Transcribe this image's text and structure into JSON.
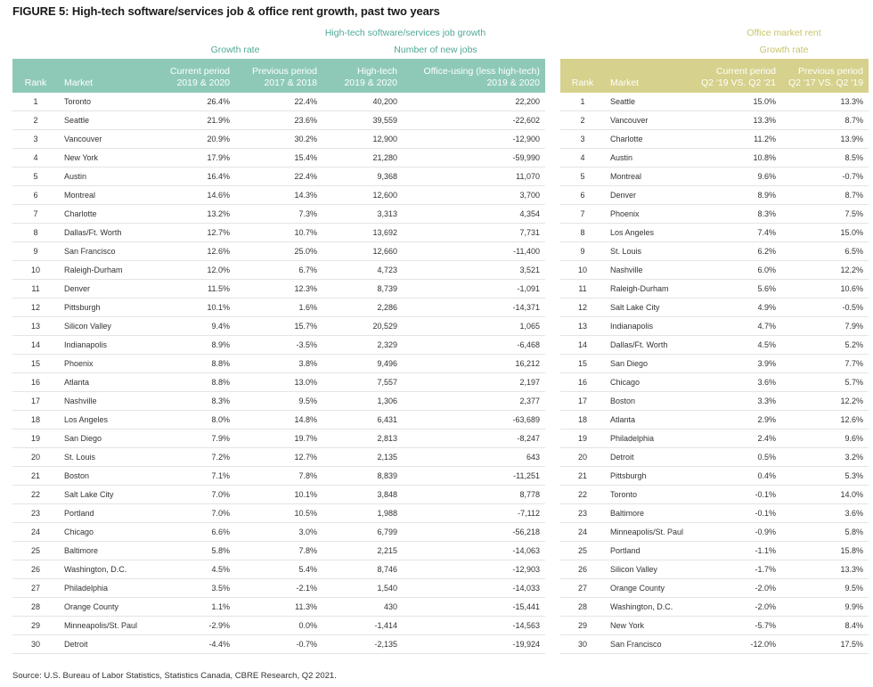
{
  "figure_title": "FIGURE 5: High-tech software/services job & office rent growth, past two years",
  "left": {
    "group_title": "High-tech software/services job growth",
    "sub_growth": "Growth rate",
    "sub_jobs": "Number of new jobs",
    "headers": {
      "rank": "Rank",
      "market": "Market",
      "cur_l1": "Current period",
      "cur_l2": "2019 & 2020",
      "prev_l1": "Previous period",
      "prev_l2": "2017 & 2018",
      "ht_l1": "High-tech",
      "ht_l2": "2019 & 2020",
      "off_l1": "Office-using (less high-tech)",
      "off_l2": "2019 & 2020"
    },
    "rows": [
      [
        "1",
        "Toronto",
        "26.4%",
        "22.4%",
        "40,200",
        "22,200"
      ],
      [
        "2",
        "Seattle",
        "21.9%",
        "23.6%",
        "39,559",
        "-22,602"
      ],
      [
        "3",
        "Vancouver",
        "20.9%",
        "30.2%",
        "12,900",
        "-12,900"
      ],
      [
        "4",
        "New York",
        "17.9%",
        "15.4%",
        "21,280",
        "-59,990"
      ],
      [
        "5",
        "Austin",
        "16.4%",
        "22.4%",
        "9,368",
        "11,070"
      ],
      [
        "6",
        "Montreal",
        "14.6%",
        "14.3%",
        "12,600",
        "3,700"
      ],
      [
        "7",
        "Charlotte",
        "13.2%",
        "7.3%",
        "3,313",
        "4,354"
      ],
      [
        "8",
        "Dallas/Ft. Worth",
        "12.7%",
        "10.7%",
        "13,692",
        "7,731"
      ],
      [
        "9",
        "San Francisco",
        "12.6%",
        "25.0%",
        "12,660",
        "-11,400"
      ],
      [
        "10",
        "Raleigh-Durham",
        "12.0%",
        "6.7%",
        "4,723",
        "3,521"
      ],
      [
        "11",
        "Denver",
        "11.5%",
        "12.3%",
        "8,739",
        "-1,091"
      ],
      [
        "12",
        "Pittsburgh",
        "10.1%",
        "1.6%",
        "2,286",
        "-14,371"
      ],
      [
        "13",
        "Silicon Valley",
        "9.4%",
        "15.7%",
        "20,529",
        "1,065"
      ],
      [
        "14",
        "Indianapolis",
        "8.9%",
        "-3.5%",
        "2,329",
        "-6,468"
      ],
      [
        "15",
        "Phoenix",
        "8.8%",
        "3.8%",
        "9,496",
        "16,212"
      ],
      [
        "16",
        "Atlanta",
        "8.8%",
        "13.0%",
        "7,557",
        "2,197"
      ],
      [
        "17",
        "Nashville",
        "8.3%",
        "9.5%",
        "1,306",
        "2,377"
      ],
      [
        "18",
        "Los Angeles",
        "8.0%",
        "14.8%",
        "6,431",
        "-63,689"
      ],
      [
        "19",
        "San Diego",
        "7.9%",
        "19.7%",
        "2,813",
        "-8,247"
      ],
      [
        "20",
        "St. Louis",
        "7.2%",
        "12.7%",
        "2,135",
        "643"
      ],
      [
        "21",
        "Boston",
        "7.1%",
        "7.8%",
        "8,839",
        "-11,251"
      ],
      [
        "22",
        "Salt Lake City",
        "7.0%",
        "10.1%",
        "3,848",
        "8,778"
      ],
      [
        "23",
        "Portland",
        "7.0%",
        "10.5%",
        "1,988",
        "-7,112"
      ],
      [
        "24",
        "Chicago",
        "6.6%",
        "3.0%",
        "6,799",
        "-56,218"
      ],
      [
        "25",
        "Baltimore",
        "5.8%",
        "7.8%",
        "2,215",
        "-14,063"
      ],
      [
        "26",
        "Washington, D.C.",
        "4.5%",
        "5.4%",
        "8,746",
        "-12,903"
      ],
      [
        "27",
        "Philadelphia",
        "3.5%",
        "-2.1%",
        "1,540",
        "-14,033"
      ],
      [
        "28",
        "Orange County",
        "1.1%",
        "11.3%",
        "430",
        "-15,441"
      ],
      [
        "29",
        "Minneapolis/St. Paul",
        "-2.9%",
        "0.0%",
        "-1,414",
        "-14,563"
      ],
      [
        "30",
        "Detroit",
        "-4.4%",
        "-0.7%",
        "-2,135",
        "-19,924"
      ]
    ]
  },
  "right": {
    "group_title": "Office market rent",
    "sub_growth": "Growth rate",
    "headers": {
      "rank": "Rank",
      "market": "Market",
      "cur_l1": "Current period",
      "cur_l2": "Q2 '19 VS. Q2 '21",
      "prev_l1": "Previous period",
      "prev_l2": "Q2 '17 VS. Q2 '19"
    },
    "rows": [
      [
        "1",
        "Seattle",
        "15.0%",
        "13.3%"
      ],
      [
        "2",
        "Vancouver",
        "13.3%",
        "8.7%"
      ],
      [
        "3",
        "Charlotte",
        "11.2%",
        "13.9%"
      ],
      [
        "4",
        "Austin",
        "10.8%",
        "8.5%"
      ],
      [
        "5",
        "Montreal",
        "9.6%",
        "-0.7%"
      ],
      [
        "6",
        "Denver",
        "8.9%",
        "8.7%"
      ],
      [
        "7",
        "Phoenix",
        "8.3%",
        "7.5%"
      ],
      [
        "8",
        "Los Angeles",
        "7.4%",
        "15.0%"
      ],
      [
        "9",
        "St. Louis",
        "6.2%",
        "6.5%"
      ],
      [
        "10",
        "Nashville",
        "6.0%",
        "12.2%"
      ],
      [
        "11",
        "Raleigh-Durham",
        "5.6%",
        "10.6%"
      ],
      [
        "12",
        "Salt Lake City",
        "4.9%",
        "-0.5%"
      ],
      [
        "13",
        "Indianapolis",
        "4.7%",
        "7.9%"
      ],
      [
        "14",
        "Dallas/Ft. Worth",
        "4.5%",
        "5.2%"
      ],
      [
        "15",
        "San Diego",
        "3.9%",
        "7.7%"
      ],
      [
        "16",
        "Chicago",
        "3.6%",
        "5.7%"
      ],
      [
        "17",
        "Boston",
        "3.3%",
        "12.2%"
      ],
      [
        "18",
        "Atlanta",
        "2.9%",
        "12.6%"
      ],
      [
        "19",
        "Philadelphia",
        "2.4%",
        "9.6%"
      ],
      [
        "20",
        "Detroit",
        "0.5%",
        "3.2%"
      ],
      [
        "21",
        "Pittsburgh",
        "0.4%",
        "5.3%"
      ],
      [
        "22",
        "Toronto",
        "-0.1%",
        "14.0%"
      ],
      [
        "23",
        "Baltimore",
        "-0.1%",
        "3.6%"
      ],
      [
        "24",
        "Minneapolis/St. Paul",
        "-0.9%",
        "5.8%"
      ],
      [
        "25",
        "Portland",
        "-1.1%",
        "15.8%"
      ],
      [
        "26",
        "Silicon Valley",
        "-1.7%",
        "13.3%"
      ],
      [
        "27",
        "Orange County",
        "-2.0%",
        "9.5%"
      ],
      [
        "28",
        "Washington, D.C.",
        "-2.0%",
        "9.9%"
      ],
      [
        "29",
        "New York",
        "-5.7%",
        "8.4%"
      ],
      [
        "30",
        "San Francisco",
        "-12.0%",
        "17.5%"
      ]
    ]
  },
  "source": "Source: U.S. Bureau of Labor Statistics, Statistics Canada, CBRE Research, Q2 2021.",
  "colors": {
    "left_header": "#8ec9b7",
    "right_header": "#d6d18c",
    "left_title": "#4fa896",
    "right_title": "#c9c46a"
  }
}
